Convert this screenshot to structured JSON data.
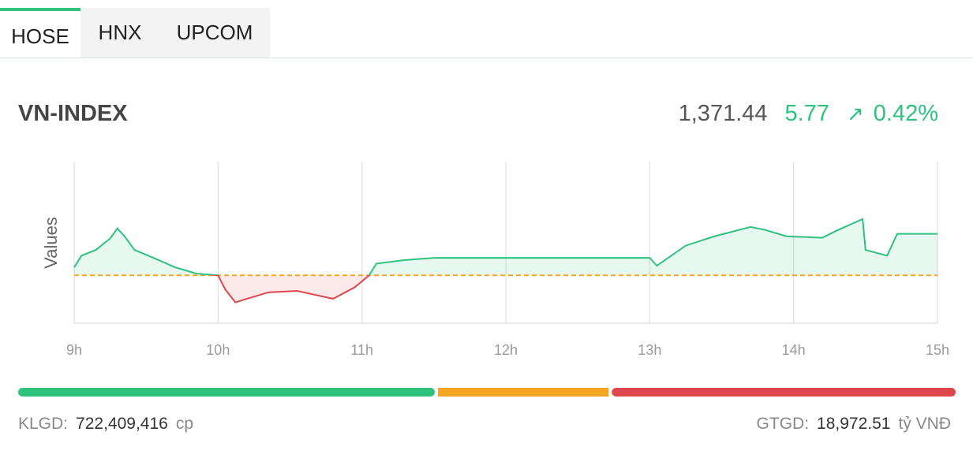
{
  "tabs": [
    "HOSE",
    "HNX",
    "UPCOM"
  ],
  "index": {
    "name": "VN-INDEX",
    "value": "1,371.44",
    "change": "5.77",
    "arrow": "↗",
    "percent": "0.42%"
  },
  "chart_data": {
    "type": "line",
    "y_label": "Values",
    "x": [
      9.0,
      9.05,
      9.15,
      9.25,
      9.3,
      9.35,
      9.42,
      9.55,
      9.7,
      9.85,
      10.0,
      10.05,
      10.12,
      10.2,
      10.35,
      10.55,
      10.8,
      10.95,
      11.05,
      11.1,
      11.3,
      11.5,
      12.7,
      13.0,
      13.05,
      13.15,
      13.25,
      13.45,
      13.7,
      13.8,
      13.95,
      14.2,
      14.3,
      14.48,
      14.5,
      14.65,
      14.72,
      15.0
    ],
    "series": [
      {
        "values": [
          1366.76,
          1368.4,
          1369.2,
          1370.8,
          1372.2,
          1371.1,
          1369.2,
          1368.1,
          1366.8,
          1365.9,
          1365.67,
          1363.7,
          1361.9,
          1362.4,
          1363.3,
          1363.5,
          1362.4,
          1364.0,
          1365.67,
          1367.3,
          1367.8,
          1368.1,
          1368.1,
          1368.1,
          1367.0,
          1368.4,
          1369.8,
          1371.1,
          1372.4,
          1372.0,
          1371.1,
          1370.9,
          1371.9,
          1373.5,
          1369.2,
          1368.4,
          1371.44,
          1371.44
        ]
      }
    ],
    "reference": 1365.67,
    "up_color": "#2ec27e",
    "down_color": "#e0474c",
    "reference_color": "#f5a623",
    "xlim": [
      9,
      15
    ],
    "ylim": [
      1359,
      1381.5
    ],
    "xticks": [
      {
        "value": 9,
        "label": "9h"
      },
      {
        "value": 10,
        "label": "10h"
      },
      {
        "value": 11,
        "label": "11h"
      },
      {
        "value": 12,
        "label": "12h"
      },
      {
        "value": 13,
        "label": "13h"
      },
      {
        "value": 14,
        "label": "14h"
      },
      {
        "value": 15,
        "label": "15h"
      }
    ],
    "grid": true
  },
  "breadth": {
    "values": [
      527,
      216,
      435
    ],
    "colors": [
      "#2ec27e",
      "#f5a623",
      "#e0474c"
    ]
  },
  "footer": {
    "volume_label": "KLGD:",
    "volume": "722,409,416",
    "volume_unit": "cp",
    "value_label": "GTGD:",
    "value": "18,972.51",
    "value_unit": "tỷ VNĐ"
  }
}
